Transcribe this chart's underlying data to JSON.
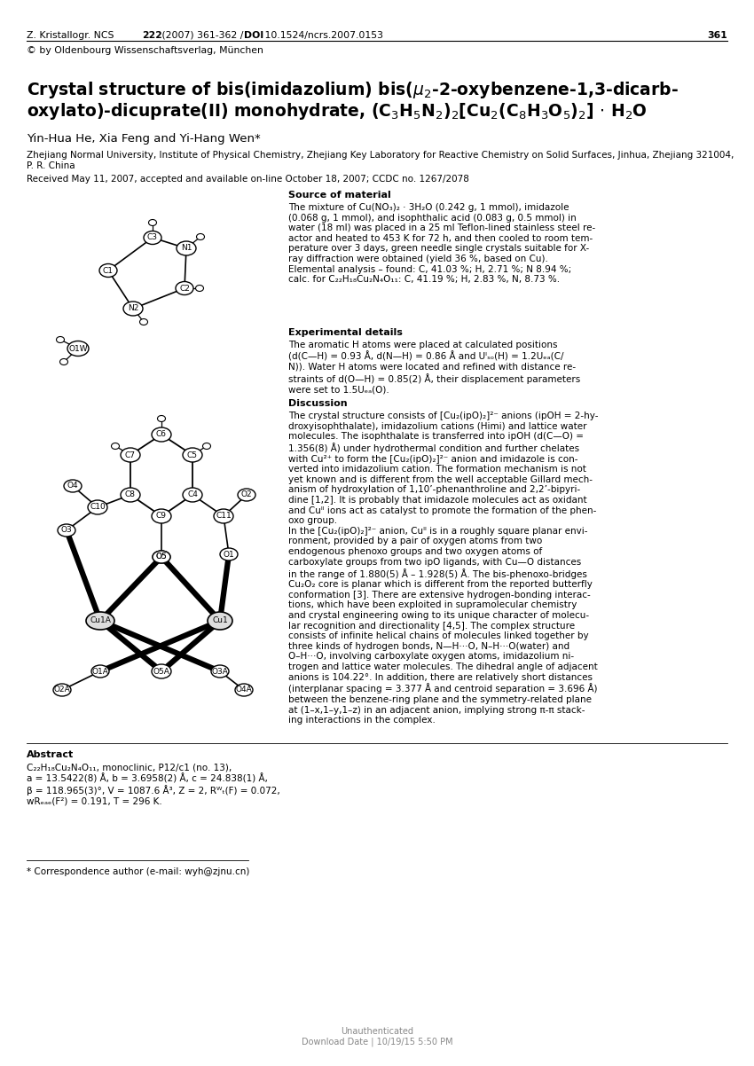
{
  "page_width": 8.5,
  "page_height": 12.02,
  "bg_color": "#ffffff",
  "header_copyright": "© by Oldenbourg Wissenschaftsverlag, München",
  "authors": "Yin-Hua He, Xia Feng and Yi-Hang Wen*",
  "affiliation": "Zhejiang Normal University, Institute of Physical Chemistry, Zhejiang Key Laboratory for Reactive Chemistry on Solid Surfaces, Jinhua, Zhejiang 321004,\nP. R. China",
  "received": "Received May 11, 2007, accepted and available on-line October 18, 2007; CCDC no. 1267/2078",
  "source_title": "Source of material",
  "source_text": "The mixture of Cu(NO₃)₂ · 3H₂O (0.242 g, 1 mmol), imidazole\n(0.068 g, 1 mmol), and isophthalic acid (0.083 g, 0.5 mmol) in\nwater (18 ml) was placed in a 25 ml Teflon-lined stainless steel re-\nactor and heated to 453 K for 72 h, and then cooled to room tem-\nperature over 3 days, green needle single crystals suitable for X-\nray diffraction were obtained (yield 36 %, based on Cu).\nElemental analysis – found: C, 41.03 %; H, 2.71 %; N 8.94 %;\ncalc. for C₂₂H₁₈Cu₂N₄O₁₁: C, 41.19 %; H, 2.83 %, N, 8.73 %.",
  "exp_title": "Experimental details",
  "exp_text": "The aromatic H atoms were placed at calculated positions\n(d(C—H) = 0.93 Å, d(N—H) = 0.86 Å and Uᴵₛₒ(H) = 1.2Uₑₐ(C/\nN)). Water H atoms were located and refined with distance re-\nstraints of d(O—H) = 0.85(2) Å, their displacement parameters\nwere set to 1.5Uₑₐ(O).",
  "disc_title": "Discussion",
  "disc_text": "The crystal structure consists of [Cu₂(ipO)₂]²⁻ anions (ipOH = 2-hy-\ndroxyisophthalate), imidazolium cations (Himi) and lattice water\nmolecules. The isophthalate is transferred into ipOH (d(C—O) =\n1.356(8) Å) under hydrothermal condition and further chelates\nwith Cu²⁺ to form the [Cu₂(ipO)₂]²⁻ anion and imidazole is con-\nverted into imidazolium cation. The formation mechanism is not\nyet known and is different from the well acceptable Gillard mech-\nanism of hydroxylation of 1,10’-phenanthroline and 2,2’-bipyri-\ndine [1,2]. It is probably that imidazole molecules act as oxidant\nand Cuᴵᴵ ions act as catalyst to promote the formation of the phen-\noxo group.\nIn the [Cu₂(ipO)₂]²⁻ anion, Cuᴵᴵ is in a roughly square planar envi-\nronment, provided by a pair of oxygen atoms from two\nendogenous phenoxo groups and two oxygen atoms of\ncarboxylate groups from two ipO ligands, with Cu—O distances\nin the range of 1.880(5) Å – 1.928(5) Å. The bis-phenoxo-bridges\nCu₂O₂ core is planar which is different from the reported butterfly\nconformation [3]. There are extensive hydrogen-bonding interac-\ntions, which have been exploited in supramolecular chemistry\nand crystal engineering owing to its unique character of molecu-\nlar recognition and directionality [4,5]. The complex structure\nconsists of infinite helical chains of molecules linked together by\nthree kinds of hydrogen bonds, N—H···O, N–H···O(water) and\nO–H···O, involving carboxylate oxygen atoms, imidazolium ni-\ntrogen and lattice water molecules. The dihedral angle of adjacent\nanions is 104.22°. In addition, there are relatively short distances\n(interplanar spacing = 3.377 Å and centroid separation = 3.696 Å)\nbetween the benzene-ring plane and the symmetry-related plane\nat (1–x,1–y,1–z) in an adjacent anion, implying strong π-π stack-\ning interactions in the complex.",
  "abstract_title": "Abstract",
  "abstract_text": "C₂₂H₁₈Cu₂N₄O₁₁, monoclinic, P12/c1 (no. 13),\na = 13.5422(8) Å, b = 3.6958(2) Å, c = 24.838(1) Å,\nβ = 118.965(3)°, V = 1087.6 Å³, Z = 2, Rᵂₜ(F) = 0.072,\nwRₑₐₑ(F²) = 0.191, T = 296 K.",
  "footnote": "* Correspondence author (e-mail: wyh@zjnu.cn)",
  "footer": "Unauthenticated\nDownload Date | 10/19/15 5:50 PM"
}
